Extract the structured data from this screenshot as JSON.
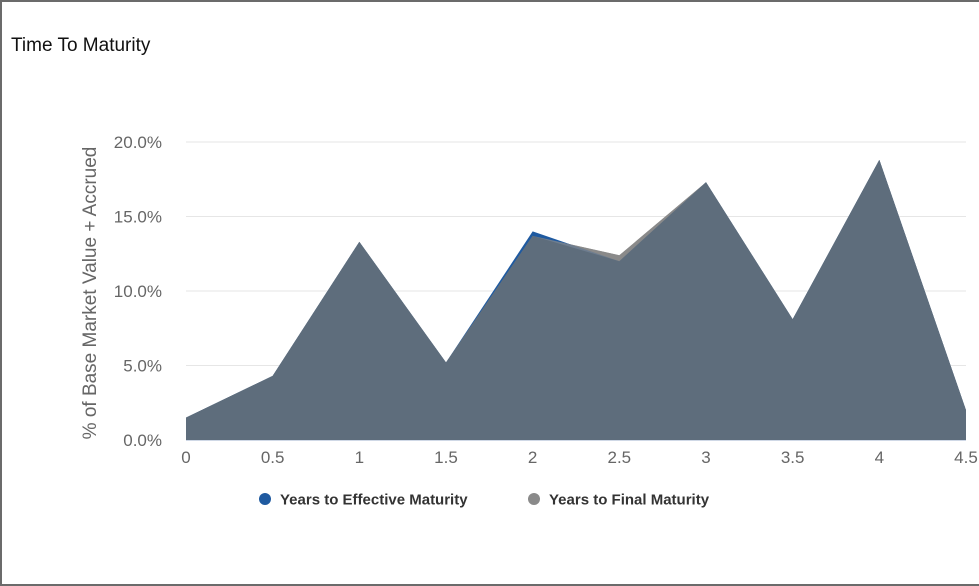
{
  "panel": {
    "title": "Time To Maturity"
  },
  "colors": {
    "effective": "#1f5aa0",
    "final": "#8a8a8a",
    "area": "#5e6d7c",
    "grid": "#e6e6e6",
    "axis": "#cfd8e6"
  },
  "chart_data": {
    "type": "area",
    "title": "Time To Maturity",
    "xlabel": "",
    "ylabel": "% of Base Market Value + Accrued",
    "xlim": [
      0,
      4.5
    ],
    "ylim": [
      0,
      20
    ],
    "x_ticks": [
      "0",
      "0.5",
      "1",
      "1.5",
      "2",
      "2.5",
      "3",
      "3.5",
      "4",
      "4.5"
    ],
    "y_ticks": [
      "0.0%",
      "5.0%",
      "10.0%",
      "15.0%",
      "20.0%"
    ],
    "y_tick_values": [
      0,
      5,
      10,
      15,
      20
    ],
    "grid": true,
    "legend": "bottom",
    "x": [
      0,
      0.5,
      1,
      1.5,
      2,
      2.5,
      3,
      3.5,
      4,
      4.5
    ],
    "series": [
      {
        "name": "Years to Effective Maturity",
        "values": [
          1.5,
          4.3,
          13.3,
          5.2,
          14.0,
          12.0,
          17.3,
          8.1,
          18.8,
          2.0
        ]
      },
      {
        "name": "Years to Final Maturity",
        "values": [
          1.5,
          4.3,
          13.3,
          5.2,
          13.7,
          12.4,
          17.3,
          8.1,
          18.8,
          2.0
        ]
      }
    ]
  }
}
